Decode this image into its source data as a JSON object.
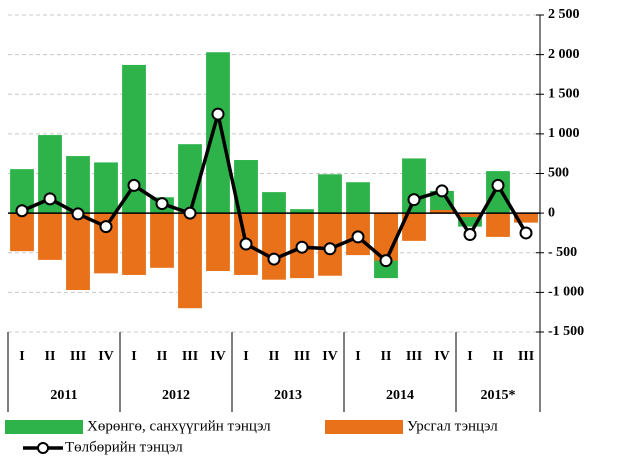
{
  "chart_data": {
    "type": "combo",
    "groups": [
      {
        "name": "2011",
        "quarters": [
          "I",
          "II",
          "III",
          "IV"
        ]
      },
      {
        "name": "2012",
        "quarters": [
          "I",
          "II",
          "III",
          "IV"
        ]
      },
      {
        "name": "2013",
        "quarters": [
          "I",
          "II",
          "III",
          "IV"
        ]
      },
      {
        "name": "2014",
        "quarters": [
          "I",
          "II",
          "III",
          "IV"
        ]
      },
      {
        "name": "2015*",
        "quarters": [
          "I",
          "II",
          "III"
        ]
      }
    ],
    "series": [
      {
        "name": "Хөрөнгө, санхүүгийн тэнцэл",
        "type": "bar",
        "color": "#2db34a",
        "values": [
          555,
          985,
          720,
          640,
          1870,
          200,
          870,
          2030,
          670,
          265,
          50,
          490,
          390,
          -820,
          690,
          280,
          -170,
          530,
          -110
        ]
      },
      {
        "name": "Урсгал тэнцэл",
        "type": "bar",
        "color": "#e8711a",
        "values": [
          -480,
          -590,
          -970,
          -760,
          -780,
          -690,
          -1200,
          -730,
          -780,
          -840,
          -820,
          -790,
          -530,
          -600,
          -350,
          40,
          -50,
          -300,
          -120
        ]
      },
      {
        "name": "Төлбөрийн тэнцэл",
        "type": "line",
        "color": "#000000",
        "values": [
          30,
          180,
          -10,
          -170,
          350,
          120,
          0,
          1250,
          -390,
          -580,
          -430,
          -450,
          -300,
          -600,
          170,
          280,
          -270,
          350,
          -250
        ]
      }
    ],
    "ylim": [
      -1500,
      2500
    ],
    "yticks": [
      {
        "value": 2500,
        "label": "2 500"
      },
      {
        "value": 2000,
        "label": "2 000"
      },
      {
        "value": 1500,
        "label": "1 500"
      },
      {
        "value": 1000,
        "label": "1 000"
      },
      500,
      0,
      {
        "value": -500,
        "label": "- 500"
      },
      {
        "value": -1000,
        "label": "-1 000"
      },
      {
        "value": -1500,
        "label": "-1 500"
      }
    ],
    "grid": true,
    "legend": "bottom"
  }
}
